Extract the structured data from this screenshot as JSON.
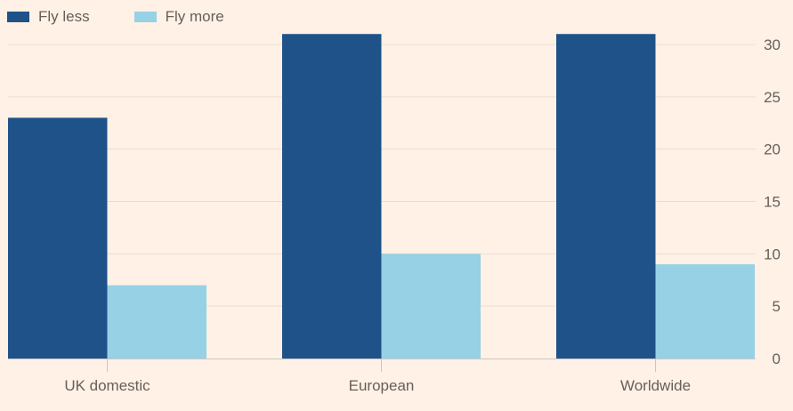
{
  "chart_data": {
    "type": "bar",
    "title": "",
    "xlabel": "",
    "ylabel": "",
    "categories": [
      "UK domestic",
      "European",
      "Worldwide"
    ],
    "series": [
      {
        "name": "Fly less",
        "color": "#1F5289",
        "values": [
          23,
          31,
          31
        ]
      },
      {
        "name": "Fly more",
        "color": "#96D1E6",
        "values": [
          7,
          10,
          9
        ]
      }
    ],
    "ylim": [
      0,
      31
    ],
    "yticks": [
      0,
      5,
      10,
      15,
      20,
      25,
      30
    ],
    "grid": true,
    "legend_position": "top-left",
    "y_axis_side": "right"
  }
}
